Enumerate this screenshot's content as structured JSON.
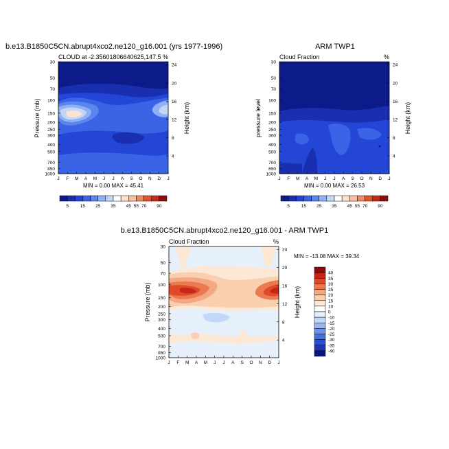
{
  "colors": {
    "abs_scale": [
      "#0d1a8a",
      "#1a2fb0",
      "#2346d6",
      "#3b63e6",
      "#5b86ee",
      "#8fb0f2",
      "#c4d6f6",
      "#ffffff",
      "#fde3cf",
      "#f8c0a0",
      "#ef8a62",
      "#e0552f",
      "#c22d1b",
      "#8c0f0b"
    ],
    "diff_scale": [
      "#0a1580",
      "#1f34b8",
      "#2c4fd8",
      "#4470e6",
      "#6a92ee",
      "#97b6f3",
      "#c3d8f7",
      "#e6f0fb",
      "#ffffff",
      "#fde8d6",
      "#f9cfb0",
      "#f3a882",
      "#ec7a50",
      "#e04a28",
      "#c6261a",
      "#8e0d0b"
    ],
    "background_panel": "#0d1a8a"
  },
  "chart_data": [
    {
      "type": "heatmap",
      "title": "b.e13.B1850C5CN.abrupt4xco2.ne120_g16.001 (yrs 1977-1996)",
      "subtitle_left": "CLOUD at -2.35601806640625,147.5",
      "subtitle_right": "%",
      "ylabel": "Pressure (mb)",
      "ylabel_right": "Height (km)",
      "x_ticks": [
        "J",
        "F",
        "M",
        "A",
        "M",
        "J",
        "J",
        "A",
        "S",
        "O",
        "N",
        "D",
        "J"
      ],
      "y_ticks": [
        "30",
        "50",
        "70",
        "100",
        "150",
        "200",
        "250",
        "300",
        "400",
        "500",
        "700",
        "850",
        "1000"
      ],
      "y_ticks_right": [
        "24",
        "20",
        "16",
        "12",
        "8",
        "4"
      ],
      "stats": "MIN =   0.00 MAX =  45.41",
      "min": 0.0,
      "max": 45.41,
      "colorbar_labels": [
        "5",
        "15",
        "25",
        "35",
        "45",
        "55",
        "70",
        "90"
      ]
    },
    {
      "type": "heatmap",
      "title": "ARM TWP1",
      "subtitle_left": "Cloud Fraction",
      "subtitle_right": "%",
      "ylabel": "pressure level",
      "ylabel_right": "Height (km)",
      "x_ticks": [
        "J",
        "F",
        "M",
        "A",
        "M",
        "J",
        "J",
        "A",
        "S",
        "O",
        "N",
        "D",
        "J"
      ],
      "y_ticks": [
        "30",
        "50",
        "70",
        "100",
        "150",
        "200",
        "250",
        "300",
        "400",
        "500",
        "700",
        "850",
        "1000"
      ],
      "y_ticks_right": [
        "24",
        "20",
        "16",
        "12",
        "8",
        "4"
      ],
      "stats": "MIN =   0.00 MAX =  26.53",
      "min": 0.0,
      "max": 26.53,
      "colorbar_labels": [
        "5",
        "15",
        "25",
        "35",
        "45",
        "55",
        "70",
        "90"
      ]
    },
    {
      "type": "heatmap",
      "title": "b.e13.B1850C5CN.abrupt4xco2.ne120_g16.001 - ARM TWP1",
      "subtitle_left": "Cloud Fraction",
      "subtitle_right": "%",
      "ylabel": "Pressure (mb)",
      "ylabel_right": "Height (km)",
      "x_ticks": [
        "J",
        "F",
        "M",
        "A",
        "M",
        "J",
        "J",
        "A",
        "S",
        "O",
        "N",
        "D",
        "J"
      ],
      "y_ticks": [
        "30",
        "50",
        "70",
        "100",
        "150",
        "200",
        "250",
        "300",
        "400",
        "500",
        "700",
        "850",
        "1000"
      ],
      "y_ticks_right": [
        "24",
        "20",
        "16",
        "12",
        "8",
        "4"
      ],
      "stats": "MIN = -13.08 MAX =  39.34",
      "min": -13.08,
      "max": 39.34,
      "colorbar_labels": [
        "40",
        "35",
        "30",
        "25",
        "20",
        "15",
        "10",
        "0",
        "-10",
        "-15",
        "-20",
        "-25",
        "-30",
        "-35",
        "-40"
      ]
    }
  ]
}
